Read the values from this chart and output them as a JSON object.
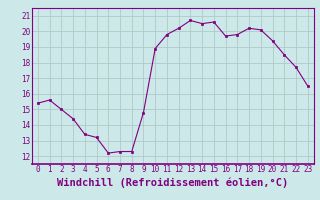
{
  "x": [
    0,
    1,
    2,
    3,
    4,
    5,
    6,
    7,
    8,
    9,
    10,
    11,
    12,
    13,
    14,
    15,
    16,
    17,
    18,
    19,
    20,
    21,
    22,
    23
  ],
  "y": [
    15.4,
    15.6,
    15.0,
    14.4,
    13.4,
    13.2,
    12.2,
    12.3,
    12.3,
    14.8,
    18.9,
    19.8,
    20.2,
    20.7,
    20.5,
    20.6,
    19.7,
    19.8,
    20.2,
    20.1,
    19.4,
    18.5,
    17.7,
    16.5
  ],
  "xlim": [
    -0.5,
    23.5
  ],
  "ylim": [
    11.5,
    21.5
  ],
  "yticks": [
    12,
    13,
    14,
    15,
    16,
    17,
    18,
    19,
    20,
    21
  ],
  "xticks": [
    0,
    1,
    2,
    3,
    4,
    5,
    6,
    7,
    8,
    9,
    10,
    11,
    12,
    13,
    14,
    15,
    16,
    17,
    18,
    19,
    20,
    21,
    22,
    23
  ],
  "xlabel": "Windchill (Refroidissement éolien,°C)",
  "line_color": "#800080",
  "marker": "s",
  "marker_size": 2,
  "bg_color": "#cce8e8",
  "grid_color": "#b0c8c8",
  "tick_color": "#800080",
  "tick_label_fontsize": 5.5,
  "xlabel_fontsize": 7.5
}
